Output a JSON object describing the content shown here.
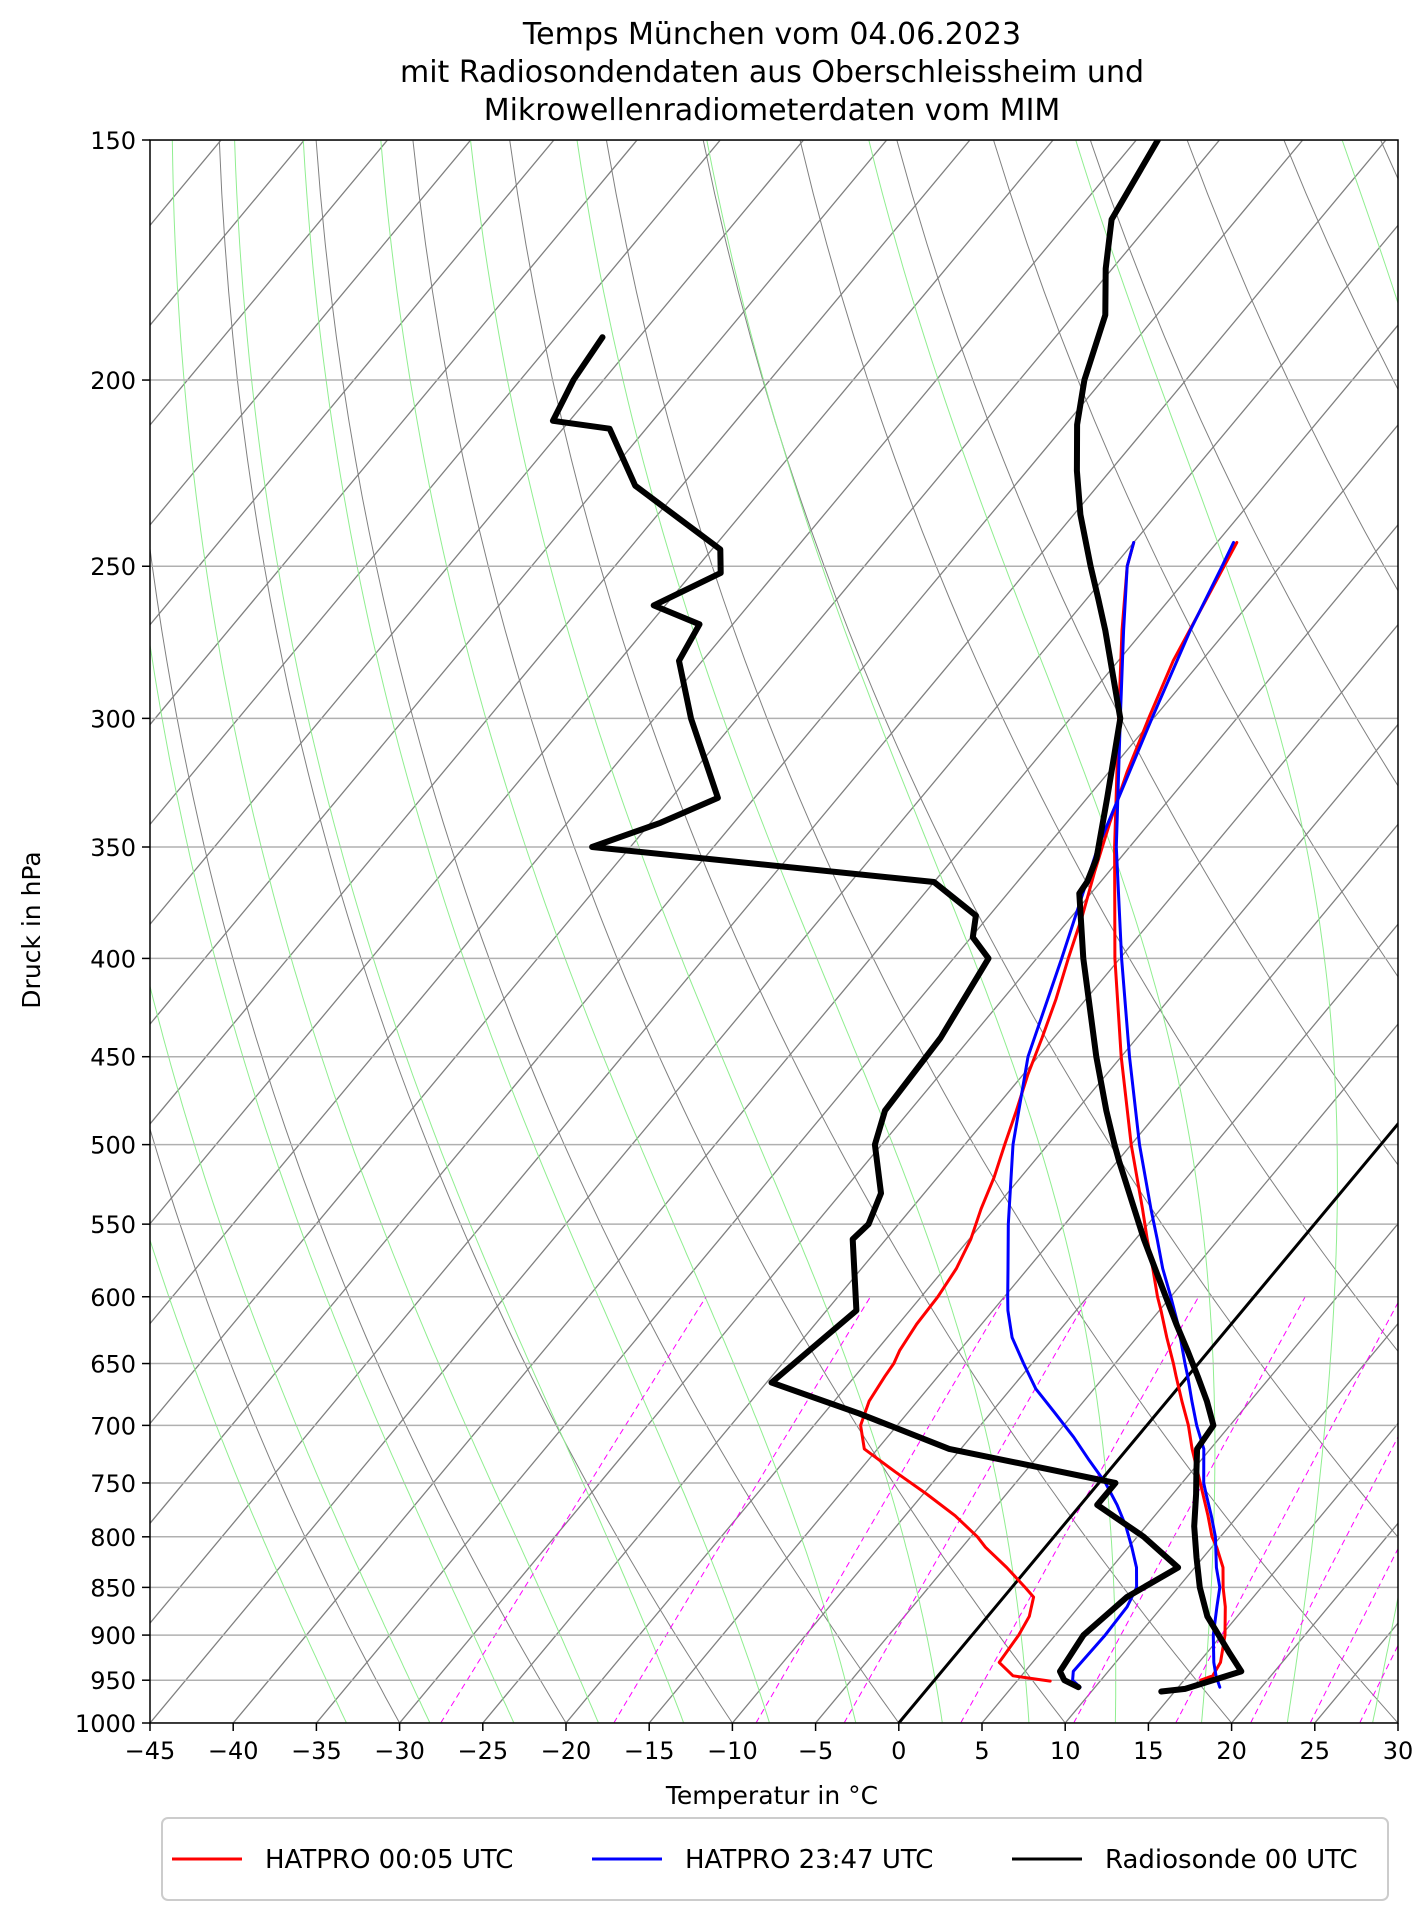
{
  "chart_data": {
    "type": "line",
    "title": [
      "Temps München vom 04.06.2023",
      "mit Radiosondendaten aus Oberschleissheim und",
      "Mikrowellenradiometerdaten vom MIM"
    ],
    "xlabel": "Temperatur in $^\\circ$C",
    "ylabel": "Druck in hPa",
    "xlim": [
      -45,
      30
    ],
    "ylim": [
      1000,
      150
    ],
    "yscale": "log",
    "xticks": [
      -45,
      -40,
      -35,
      -30,
      -25,
      -20,
      -15,
      -10,
      -5,
      0,
      5,
      10,
      15,
      20,
      25,
      30
    ],
    "yticks": [
      1000,
      950,
      900,
      850,
      800,
      750,
      700,
      650,
      600,
      550,
      500,
      450,
      400,
      350,
      300,
      250,
      200,
      150
    ],
    "grid": true,
    "legend_position": "bottom",
    "series": [
      {
        "name": "HATPRO 00:05 UTC",
        "color": "#ff0000",
        "temperature": {
          "p": [
            950,
            945,
            930,
            900,
            870,
            850,
            830,
            810,
            800,
            780,
            750,
            720,
            700,
            680,
            660,
            650,
            630,
            610,
            600,
            580,
            560,
            540,
            500,
            450,
            400,
            350,
            300,
            270,
            250,
            243
          ],
          "t": [
            16.0,
            16.5,
            16.3,
            15.2,
            13.8,
            12.7,
            11.7,
            10.3,
            9.5,
            8.2,
            6.1,
            3.9,
            2.5,
            0.9,
            -0.7,
            -1.5,
            -3.2,
            -4.9,
            -5.8,
            -7.5,
            -9.3,
            -11.1,
            -15.0,
            -20.0,
            -25.3,
            -30.9,
            -37.1,
            -41.3,
            -44.2,
            -45.0
          ]
        },
        "dewpoint": {
          "p": [
            951,
            945,
            930,
            900,
            880,
            860,
            850,
            830,
            810,
            800,
            780,
            760,
            740,
            720,
            700,
            680,
            660,
            650,
            640,
            620,
            600,
            580,
            570,
            560,
            540,
            520,
            500,
            480,
            460,
            440,
            420,
            400,
            380,
            360,
            340,
            320,
            300,
            280,
            260,
            243
          ],
          "t": [
            7.0,
            4.5,
            3.0,
            2.8,
            2.5,
            1.8,
            0.8,
            -1.3,
            -3.6,
            -4.6,
            -7.0,
            -9.8,
            -12.8,
            -15.8,
            -17.2,
            -17.9,
            -18.2,
            -18.3,
            -18.6,
            -18.9,
            -19.0,
            -19.3,
            -19.6,
            -19.9,
            -20.8,
            -21.6,
            -22.6,
            -23.6,
            -24.7,
            -25.7,
            -26.8,
            -28.1,
            -29.4,
            -30.9,
            -32.4,
            -33.9,
            -35.3,
            -36.7,
            -37.8,
            -38.8
          ]
        }
      },
      {
        "name": "HATPRO 23:47 UTC",
        "color": "#0000ff",
        "temperature": {
          "p": [
            958,
            945,
            930,
            900,
            870,
            850,
            830,
            800,
            780,
            760,
            750,
            720,
            700,
            680,
            660,
            650,
            620,
            600,
            580,
            560,
            540,
            500,
            450,
            400,
            350,
            300,
            270,
            250,
            243
          ],
          "t": [
            17.5,
            16.7,
            15.9,
            14.5,
            13.3,
            12.5,
            11.3,
            9.7,
            8.4,
            7.0,
            6.3,
            4.6,
            3.0,
            1.5,
            0.0,
            -0.8,
            -3.2,
            -5.0,
            -6.9,
            -8.7,
            -10.6,
            -14.5,
            -19.5,
            -24.9,
            -30.8,
            -37.0,
            -41.2,
            -44.2,
            -45.0
          ]
        },
        "dewpoint": {
          "p": [
            958,
            950,
            940,
            900,
            870,
            850,
            830,
            810,
            790,
            770,
            750,
            730,
            710,
            690,
            670,
            650,
            630,
            610,
            600,
            580,
            550,
            500,
            450,
            400,
            350,
            300,
            270,
            250,
            243
          ],
          "t": [
            9.1,
            8.3,
            7.9,
            8.0,
            7.9,
            7.5,
            6.5,
            5.2,
            3.8,
            2.2,
            0.4,
            -1.7,
            -3.8,
            -6.1,
            -8.5,
            -10.5,
            -12.5,
            -14.1,
            -14.8,
            -16.2,
            -18.4,
            -22.1,
            -25.6,
            -28.5,
            -31.9,
            -35.1,
            -37.2,
            -38.5,
            -39.0
          ]
        }
      },
      {
        "name": "Radiosonde 00 UTC",
        "color": "#000000",
        "temperature": {
          "p": [
            963,
            960,
            940,
            920,
            880,
            850,
            820,
            790,
            760,
            740,
            720,
            700,
            680,
            660,
            640,
            620,
            600,
            560,
            510,
            500,
            480,
            450,
            400,
            370,
            365,
            355,
            330,
            300,
            270,
            260,
            250,
            235,
            223,
            211,
            200,
            185,
            175,
            165,
            150
          ],
          "t": [
            14.2,
            15.5,
            18.0,
            16.4,
            13.2,
            11.3,
            9.6,
            7.9,
            6.4,
            5.3,
            4.2,
            4.0,
            2.4,
            0.6,
            -1.3,
            -3.3,
            -5.3,
            -9.5,
            -14.9,
            -16.0,
            -18.2,
            -21.5,
            -27.2,
            -30.7,
            -30.8,
            -31.4,
            -33.8,
            -37.0,
            -42.3,
            -44.3,
            -46.4,
            -49.6,
            -52.0,
            -54.3,
            -56.1,
            -58.1,
            -60.4,
            -62.5,
            -63.7
          ]
        },
        "dewpoint": {
          "p": [
            958,
            950,
            940,
            900,
            860,
            830,
            800,
            770,
            750,
            720,
            690,
            665,
            610,
            560,
            550,
            530,
            500,
            480,
            440,
            400,
            390,
            380,
            365,
            350,
            340,
            330,
            300,
            280,
            268,
            262,
            252,
            245,
            227,
            212,
            210,
            200,
            190
          ],
          "t": [
            9.0,
            7.8,
            7.1,
            6.7,
            7.4,
            9.0,
            5.4,
            1.0,
            1.0,
            -10.7,
            -17.9,
            -24.7,
            -23.2,
            -27.0,
            -26.8,
            -27.6,
            -30.4,
            -31.5,
            -31.8,
            -32.9,
            -34.9,
            -35.8,
            -40.0,
            -62.3,
            -59.4,
            -57.2,
            -62.8,
            -66.4,
            -67.0,
            -70.7,
            -68.3,
            -69.5,
            -77.8,
            -82.2,
            -86.0,
            -86.8,
            -87.2
          ]
        }
      }
    ],
    "reference_line": {
      "color": "#000000",
      "p": [
        1000,
        270
      ],
      "t": [
        0,
        0
      ]
    },
    "background_lines": {
      "isotherms": {
        "color": "#808080",
        "interval": 5
      },
      "dry_adiabats": {
        "color": "#808080"
      },
      "moist_adiabats": {
        "color": "#90ee90"
      },
      "mixing_ratio_lines": {
        "color": "#ff00ff",
        "style": "dashed"
      }
    }
  }
}
